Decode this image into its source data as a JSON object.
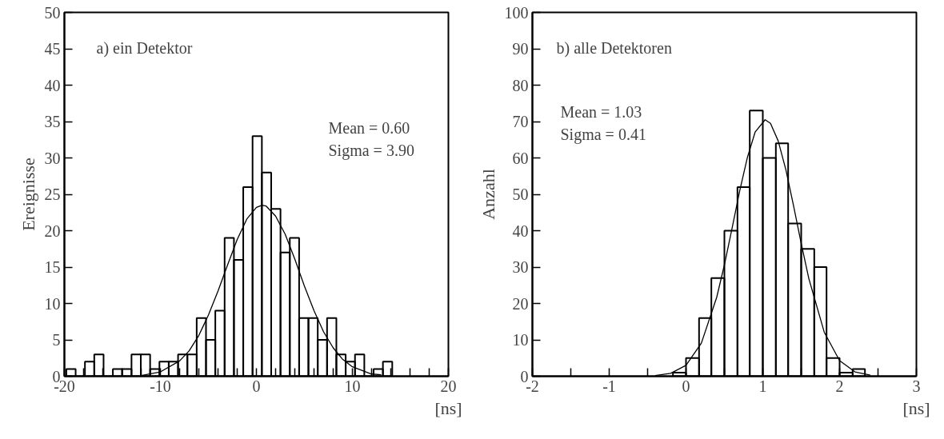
{
  "chart_data": [
    {
      "type": "histogram",
      "ylabel": "Ereignisse",
      "xlabel": "[ns]",
      "color": "#000000",
      "annotations": [
        "a)  ein Detektor",
        "Mean   = 0.60",
        "Sigma  = 3.90"
      ],
      "bins": [
        -19.8,
        -18.83,
        -17.86,
        -16.89,
        -15.92,
        -14.95,
        -13.98,
        -13.01,
        -12.04,
        -11.07,
        -10.1,
        -9.13,
        -8.16,
        -7.19,
        -6.22,
        -5.25,
        -4.28,
        -3.31,
        -2.34,
        -1.37,
        -0.4,
        0.57,
        1.54,
        2.51,
        3.48,
        4.45,
        5.42,
        6.39,
        7.36,
        8.33,
        9.3,
        10.27,
        11.24,
        12.21,
        13.18,
        14.15
      ],
      "values": [
        1,
        0,
        2,
        3,
        0,
        1,
        1,
        3,
        3,
        1,
        2,
        2,
        3,
        3,
        8,
        5,
        9,
        19,
        16,
        26,
        33,
        28,
        23,
        17,
        19,
        8,
        8,
        5,
        8,
        3,
        2,
        3,
        0,
        1,
        2
      ],
      "series": [
        {
          "type": "line",
          "color": "#000000",
          "x": [
            -12,
            -10,
            -8,
            -7,
            -6,
            -5,
            -4,
            -3,
            -2,
            -1,
            0,
            0.6,
            1,
            2,
            3,
            4,
            5,
            6,
            7,
            8,
            9,
            10,
            12,
            13
          ],
          "values": [
            0.1,
            0.6,
            2.1,
            3.5,
            5.6,
            8.4,
            11.7,
            15.3,
            18.8,
            21.6,
            23.2,
            23.5,
            23.4,
            22.0,
            19.5,
            16.1,
            12.4,
            9.0,
            6.1,
            3.9,
            2.3,
            1.3,
            0.3,
            0.2
          ]
        }
      ],
      "xlim": [
        -20,
        20
      ],
      "ylim": [
        0,
        50
      ],
      "xticks": [
        -20,
        {
          "value": -18,
          "label": null
        },
        {
          "value": -16,
          "label": null
        },
        {
          "value": -14,
          "label": null
        },
        {
          "value": -12,
          "label": null
        },
        -10,
        {
          "value": -8,
          "label": null
        },
        {
          "value": -6,
          "label": null
        },
        {
          "value": -4,
          "label": null
        },
        {
          "value": -2,
          "label": null
        },
        0,
        {
          "value": 2,
          "label": null
        },
        {
          "value": 4,
          "label": null
        },
        {
          "value": 6,
          "label": null
        },
        {
          "value": 8,
          "label": null
        },
        10,
        {
          "value": 12,
          "label": null
        },
        {
          "value": 14,
          "label": null
        },
        {
          "value": 16,
          "label": null
        },
        {
          "value": 18,
          "label": null
        },
        20
      ],
      "yticks": [
        0,
        5,
        10,
        15,
        20,
        25,
        30,
        35,
        40,
        45,
        50
      ],
      "grid": false
    },
    {
      "type": "histogram",
      "ylabel": "Anzahl",
      "xlabel": "[ns]",
      "color": "#000000",
      "annotations": [
        "b)  alle Detektoren",
        "Mean   = 1.03",
        "Sigma  = 0.41"
      ],
      "bins": [
        -0.17,
        0,
        0.17,
        0.33,
        0.5,
        0.67,
        0.83,
        1.0,
        1.17,
        1.33,
        1.5,
        1.67,
        1.83,
        2.0,
        2.17,
        2.33
      ],
      "values": [
        1,
        5,
        16,
        27,
        40,
        52,
        73,
        60,
        64,
        42,
        35,
        30,
        5,
        1,
        2
      ],
      "series": [
        {
          "type": "line",
          "color": "#000000",
          "x": [
            -0.4,
            -0.2,
            0,
            0.2,
            0.4,
            0.5,
            0.6,
            0.7,
            0.8,
            0.9,
            1.03,
            1.1,
            1.2,
            1.3,
            1.4,
            1.5,
            1.6,
            1.8,
            2.0,
            2.2,
            2.4
          ],
          "values": [
            0.2,
            0.8,
            3.0,
            9.1,
            21.7,
            30.6,
            40.7,
            51.0,
            60.2,
            67.1,
            70.5,
            69.5,
            64.7,
            56.8,
            46.9,
            36.5,
            26.8,
            12.1,
            4.3,
            1.2,
            0.3
          ]
        }
      ],
      "xlim": [
        -2,
        3
      ],
      "ylim": [
        0,
        100
      ],
      "xticks": [
        -2,
        {
          "value": -1.5,
          "label": null
        },
        -1,
        {
          "value": -0.5,
          "label": null
        },
        0,
        {
          "value": 0.5,
          "label": null
        },
        1,
        {
          "value": 1.5,
          "label": null
        },
        2,
        {
          "value": 2.5,
          "label": null
        },
        3
      ],
      "yticks": [
        0,
        10,
        20,
        30,
        40,
        50,
        60,
        70,
        80,
        90,
        100
      ],
      "grid": false
    }
  ]
}
